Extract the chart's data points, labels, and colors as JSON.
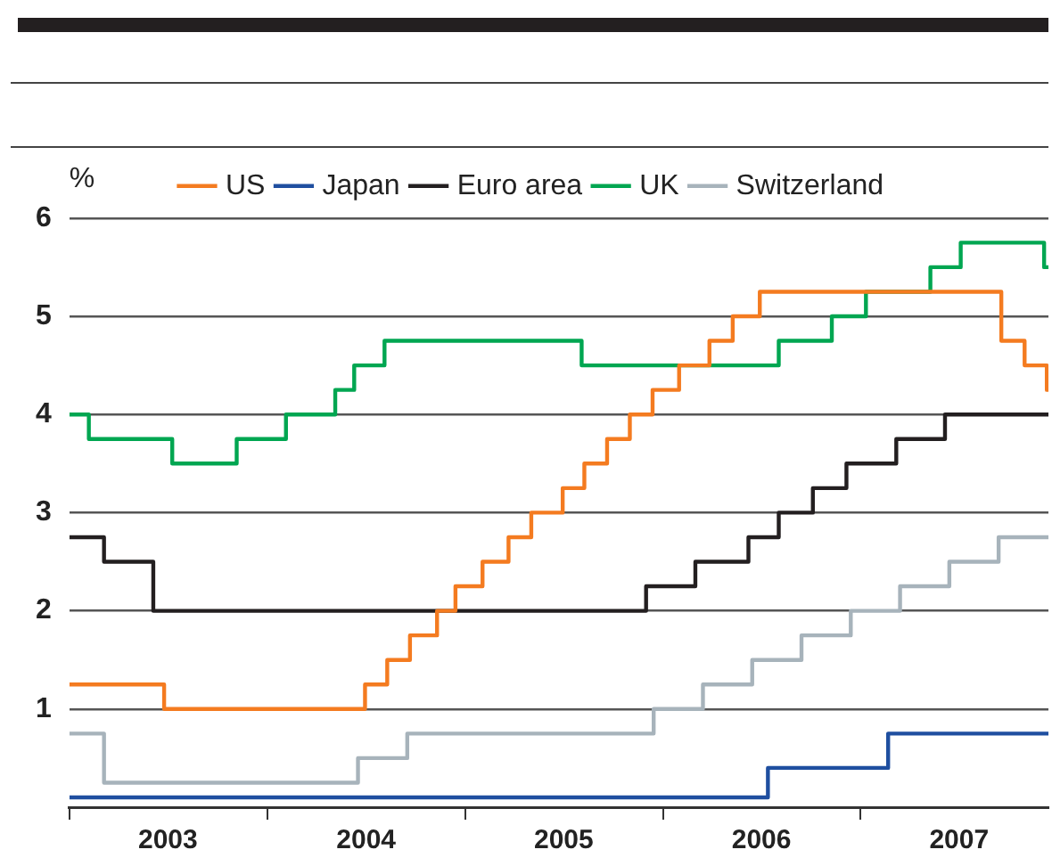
{
  "chart_data": {
    "type": "step",
    "ylabel": "%",
    "legend": "top",
    "grid": "y",
    "xlim": [
      "2003-01-01",
      "2007-12-14"
    ],
    "xticks": [
      {
        "value": "2003-01-01",
        "label": null
      },
      {
        "value": "2003-07-02",
        "label": "2003"
      },
      {
        "value": "2004-01-01",
        "label": null
      },
      {
        "value": "2004-07-02",
        "label": "2004"
      },
      {
        "value": "2005-01-01",
        "label": null
      },
      {
        "value": "2005-07-02",
        "label": "2005"
      },
      {
        "value": "2006-01-01",
        "label": null
      },
      {
        "value": "2006-07-02",
        "label": "2006"
      },
      {
        "value": "2007-01-01",
        "label": null
      },
      {
        "value": "2007-07-02",
        "label": "2007"
      }
    ],
    "ylim": [
      0,
      6
    ],
    "yticks": [
      1,
      2,
      3,
      4,
      5,
      6
    ],
    "series": [
      {
        "name": "US",
        "color": "#f47b20",
        "x": [
          "2003-01-01",
          "2003-06-25",
          "2004-06-30",
          "2004-08-10",
          "2004-09-21",
          "2004-11-10",
          "2004-12-14",
          "2005-02-02",
          "2005-03-22",
          "2005-05-03",
          "2005-06-30",
          "2005-08-09",
          "2005-09-20",
          "2005-11-01",
          "2005-12-13",
          "2006-01-31",
          "2006-03-28",
          "2006-05-10",
          "2006-06-29",
          "2007-09-18",
          "2007-10-31",
          "2007-12-11",
          "2007-12-14"
        ],
        "values": [
          1.25,
          1.0,
          1.25,
          1.5,
          1.75,
          2.0,
          2.25,
          2.5,
          2.75,
          3.0,
          3.25,
          3.5,
          3.75,
          4.0,
          4.25,
          4.5,
          4.75,
          5.0,
          5.25,
          4.75,
          4.5,
          4.25,
          4.25
        ]
      },
      {
        "name": "Japan",
        "color": "#1f4fa0",
        "x": [
          "2003-01-01",
          "2006-07-14",
          "2007-02-21",
          "2007-12-14"
        ],
        "values": [
          0.1,
          0.4,
          0.75,
          0.75
        ]
      },
      {
        "name": "Euro area",
        "color": "#231f20",
        "x": [
          "2003-01-01",
          "2003-03-06",
          "2003-06-05",
          "2005-12-01",
          "2006-03-02",
          "2006-06-08",
          "2006-08-03",
          "2006-10-05",
          "2006-12-06",
          "2007-03-08",
          "2007-06-06",
          "2007-12-14"
        ],
        "values": [
          2.75,
          2.5,
          2.0,
          2.25,
          2.5,
          2.75,
          3.0,
          3.25,
          3.5,
          3.75,
          4.0,
          4.0
        ]
      },
      {
        "name": "UK",
        "color": "#00a651",
        "x": [
          "2003-01-01",
          "2003-02-06",
          "2003-07-10",
          "2003-11-06",
          "2004-02-05",
          "2004-05-06",
          "2004-06-10",
          "2004-08-05",
          "2005-08-04",
          "2006-08-03",
          "2006-11-09",
          "2007-01-11",
          "2007-05-10",
          "2007-07-05",
          "2007-12-06",
          "2007-12-14"
        ],
        "values": [
          4.0,
          3.75,
          3.5,
          3.75,
          4.0,
          4.25,
          4.5,
          4.75,
          4.5,
          4.75,
          5.0,
          5.25,
          5.5,
          5.75,
          5.5,
          5.5
        ]
      },
      {
        "name": "Switzerland",
        "color": "#a7b3bb",
        "x": [
          "2003-01-01",
          "2003-03-06",
          "2004-06-17",
          "2004-09-16",
          "2005-12-15",
          "2006-03-16",
          "2006-06-15",
          "2006-09-14",
          "2006-12-14",
          "2007-03-15",
          "2007-06-14",
          "2007-09-13",
          "2007-12-14"
        ],
        "values": [
          0.75,
          0.25,
          0.5,
          0.75,
          1.0,
          1.25,
          1.5,
          1.75,
          2.0,
          2.25,
          2.5,
          2.75,
          2.75
        ]
      }
    ]
  }
}
